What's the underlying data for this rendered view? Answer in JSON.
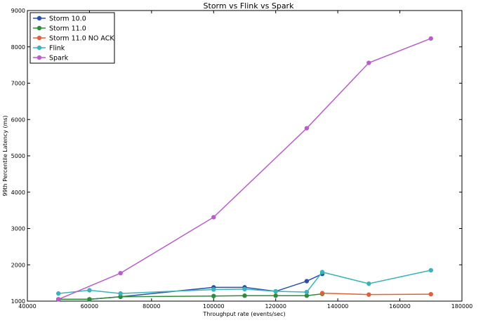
{
  "chart_data": {
    "type": "line",
    "title": "Storm vs Flink vs Spark",
    "xlabel": "Throughput rate (events/sec)",
    "ylabel": "99th Percentile Latency (ms)",
    "xlim": [
      40000,
      180000
    ],
    "ylim": [
      1000,
      9000
    ],
    "xticks": [
      40000,
      60000,
      80000,
      100000,
      120000,
      140000,
      160000,
      180000
    ],
    "yticks": [
      1000,
      2000,
      3000,
      4000,
      5000,
      6000,
      7000,
      8000,
      9000
    ],
    "grid": false,
    "legend_position": "top-left",
    "series": [
      {
        "name": "Storm 10.0",
        "color": "#2b4fa8",
        "x": [
          50000,
          60000,
          70000,
          100000,
          110000,
          120000,
          130000,
          135000
        ],
        "y": [
          1050,
          1050,
          1120,
          1380,
          1380,
          1270,
          1550,
          1750
        ]
      },
      {
        "name": "Storm 11.0",
        "color": "#2e8b3a",
        "x": [
          50000,
          60000,
          70000,
          100000,
          110000,
          120000,
          130000,
          135000
        ],
        "y": [
          1050,
          1050,
          1120,
          1140,
          1150,
          1150,
          1150,
          1200
        ]
      },
      {
        "name": "Storm 11.0 NO ACK",
        "color": "#e0603c",
        "x": [
          135000,
          150000,
          170000
        ],
        "y": [
          1220,
          1180,
          1190
        ]
      },
      {
        "name": "Flink",
        "color": "#3bb3b8",
        "x": [
          50000,
          60000,
          70000,
          100000,
          110000,
          120000,
          130000,
          135000,
          150000,
          170000
        ],
        "y": [
          1210,
          1300,
          1210,
          1320,
          1330,
          1270,
          1250,
          1800,
          1480,
          1850
        ]
      },
      {
        "name": "Spark",
        "color": "#b65fc8",
        "x": [
          50000,
          70000,
          100000,
          130000,
          150000,
          170000
        ],
        "y": [
          1050,
          1770,
          3310,
          5760,
          7560,
          8230
        ]
      }
    ]
  }
}
